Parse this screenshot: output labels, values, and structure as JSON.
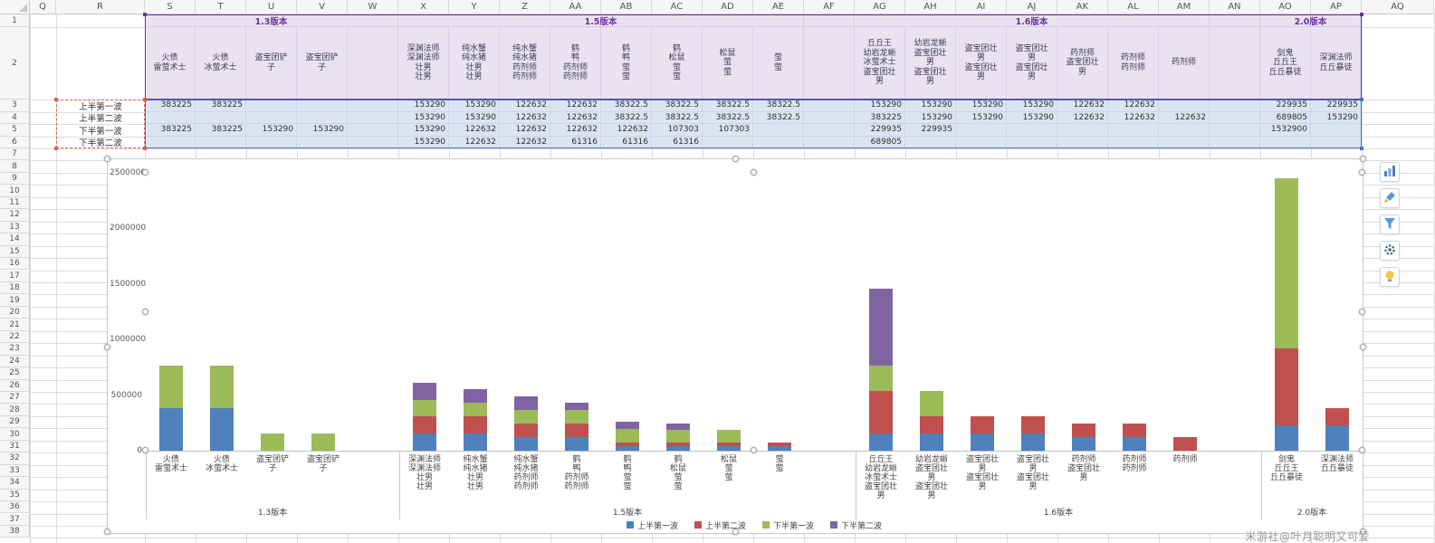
{
  "watermark": "米游社@叶月聪明又可爱",
  "sheet": {
    "col_letters": [
      "Q",
      "R",
      "S",
      "T",
      "U",
      "V",
      "W",
      "X",
      "Y",
      "Z",
      "AA",
      "AB",
      "AC",
      "AD",
      "AE",
      "AF",
      "AG",
      "AH",
      "AI",
      "AJ",
      "AK",
      "AL",
      "AM",
      "AN",
      "AO",
      "AP",
      "AQ"
    ],
    "num_rows": 38,
    "row_labels": [
      "上半第一波",
      "上半第二波",
      "下半第一波",
      "下半第二波"
    ]
  },
  "chart_data": {
    "type": "bar",
    "stacked": true,
    "title": "",
    "xlabel": "",
    "ylabel": "",
    "ylim": [
      0,
      2500000
    ],
    "ytick_step": 500000,
    "yticks": [
      "0",
      "500000",
      "1000000",
      "1500000",
      "2000000",
      "2500000"
    ],
    "grid": false,
    "legend_position": "bottom",
    "legend": [
      "上半第一波",
      "上半第二波",
      "下半第一波",
      "下半第二波"
    ],
    "colors": [
      "#4f81bd",
      "#c0504d",
      "#9bbb59",
      "#8064a2"
    ],
    "header_groups": [
      {
        "label": "1.3版本",
        "start": "S",
        "end": "W"
      },
      {
        "label": "1.5版本",
        "start": "X",
        "end": "AE"
      },
      {
        "label": "1.6版本",
        "start": "AG",
        "end": "AM"
      },
      {
        "label": "2.0版本",
        "start": "AO",
        "end": "AP"
      }
    ],
    "groups": [
      {
        "label": "1.3版本",
        "start": "S",
        "end": "W"
      },
      {
        "label": "1.5版本",
        "start": "X",
        "end": "AF"
      },
      {
        "label": "1.6版本",
        "start": "AG",
        "end": "AN"
      },
      {
        "label": "2.0版本",
        "start": "AO",
        "end": "AP"
      }
    ],
    "categories": [
      {
        "col": "S",
        "lines": [
          "火债",
          "雷萤术士"
        ],
        "values": [
          383225,
          null,
          383225,
          null
        ]
      },
      {
        "col": "T",
        "lines": [
          "火债",
          "冰萤术士"
        ],
        "values": [
          383225,
          null,
          383225,
          null
        ]
      },
      {
        "col": "U",
        "lines": [
          "盗宝团铲",
          "子"
        ],
        "values": [
          null,
          null,
          153290,
          null
        ]
      },
      {
        "col": "V",
        "lines": [
          "盗宝团铲",
          "子"
        ],
        "values": [
          null,
          null,
          153290,
          null
        ]
      },
      {
        "col": "X",
        "lines": [
          "深渊法师",
          "深渊法师",
          "壮男",
          "壮男"
        ],
        "values": [
          153290,
          153290,
          153290,
          153290
        ]
      },
      {
        "col": "Y",
        "lines": [
          "纯水蟹",
          "纯水猪",
          "壮男",
          "壮男"
        ],
        "values": [
          153290,
          153290,
          122632,
          122632
        ]
      },
      {
        "col": "Z",
        "lines": [
          "纯水蟹",
          "纯水猪",
          "药剂师",
          "药剂师"
        ],
        "values": [
          122632,
          122632,
          122632,
          122632
        ]
      },
      {
        "col": "AA",
        "lines": [
          "鹤",
          "鸭",
          "药剂师",
          "药剂师"
        ],
        "values": [
          122632,
          122632,
          122632,
          61316
        ]
      },
      {
        "col": "AB",
        "lines": [
          "鹤",
          "鸭",
          "萤",
          "萤"
        ],
        "values": [
          38322.5,
          38322.5,
          122632,
          61316
        ]
      },
      {
        "col": "AC",
        "lines": [
          "鹤",
          "松鼠",
          "萤",
          "萤"
        ],
        "values": [
          38322.5,
          38322.5,
          107303,
          61316
        ]
      },
      {
        "col": "AD",
        "lines": [
          "松鼠",
          "萤",
          "萤"
        ],
        "values": [
          38322.5,
          38322.5,
          107303,
          null
        ]
      },
      {
        "col": "AE",
        "lines": [
          "萤",
          "萤"
        ],
        "values": [
          38322.5,
          38322.5,
          null,
          null
        ]
      },
      {
        "col": "AG",
        "lines": [
          "丘丘王",
          "幼岩龙蜥",
          "冰萤术士",
          "盗宝团壮",
          "男"
        ],
        "values": [
          153290,
          383225,
          229935,
          689805
        ]
      },
      {
        "col": "AH",
        "lines": [
          "幼岩龙蜥",
          "盗宝团壮",
          "男",
          "盗宝团壮",
          "男"
        ],
        "values": [
          153290,
          153290,
          229935,
          null
        ]
      },
      {
        "col": "AI",
        "lines": [
          "盗宝团壮",
          "男",
          "盗宝团壮",
          "男"
        ],
        "values": [
          153290,
          153290,
          null,
          null
        ]
      },
      {
        "col": "AJ",
        "lines": [
          "盗宝团壮",
          "男",
          "盗宝团壮",
          "男"
        ],
        "values": [
          153290,
          153290,
          null,
          null
        ]
      },
      {
        "col": "AK",
        "lines": [
          "药剂师",
          "盗宝团壮",
          "男"
        ],
        "values": [
          122632,
          122632,
          null,
          null
        ]
      },
      {
        "col": "AL",
        "lines": [
          "药剂师",
          "药剂师"
        ],
        "values": [
          122632,
          122632,
          null,
          null
        ]
      },
      {
        "col": "AM",
        "lines": [
          "药剂师"
        ],
        "values": [
          null,
          122632,
          null,
          null
        ]
      },
      {
        "col": "AO",
        "lines": [
          "剑鬼",
          "丘丘王",
          "丘丘暴徒"
        ],
        "values": [
          229935,
          689805,
          1532900,
          null
        ]
      },
      {
        "col": "AP",
        "lines": [
          "深渊法师",
          "丘丘暴徒"
        ],
        "values": [
          229935,
          153290,
          null,
          null
        ]
      }
    ]
  },
  "range_colors": {
    "series_names": "#7030a0",
    "values": "#4472c4",
    "category_labels": "#e0614f"
  },
  "chart_tools": [
    {
      "name": "chart-elements",
      "icon": "column-chart-icon"
    },
    {
      "name": "chart-style",
      "icon": "brush-icon"
    },
    {
      "name": "chart-filter",
      "icon": "funnel-icon"
    },
    {
      "name": "chart-settings",
      "icon": "gear-icon"
    },
    {
      "name": "chart-suggest",
      "icon": "bulb-icon"
    }
  ]
}
